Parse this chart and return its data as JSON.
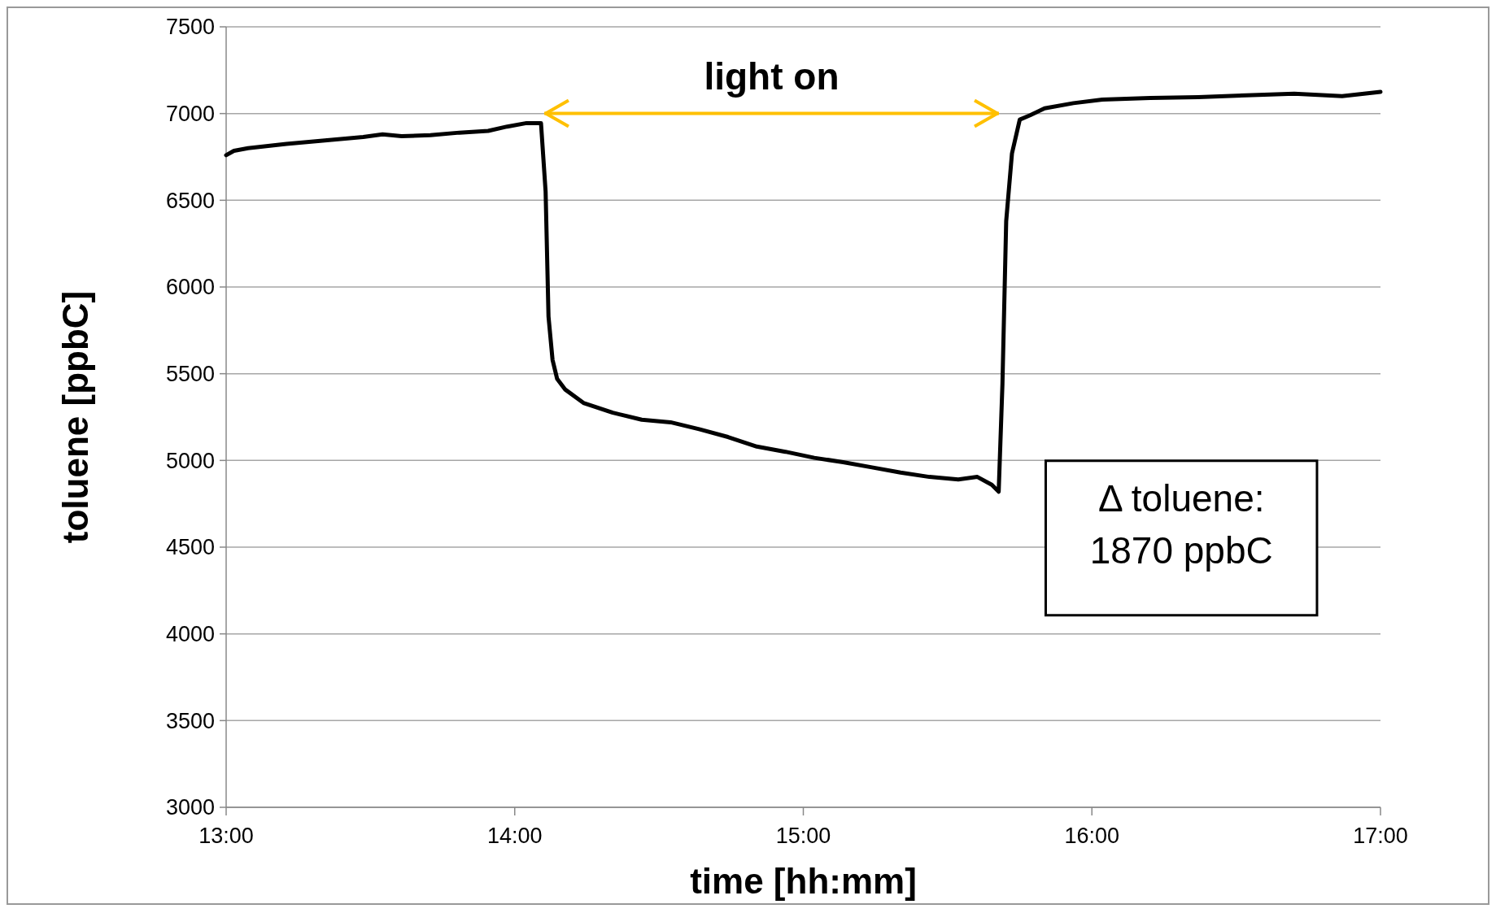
{
  "chart_data": {
    "type": "line",
    "xlabel": "time [hh:mm]",
    "ylabel": "toluene [ppbC]",
    "xlim": [
      13,
      17
    ],
    "xticks": [
      {
        "value": 13,
        "label": "13:00"
      },
      {
        "value": 14,
        "label": "14:00"
      },
      {
        "value": 15,
        "label": "15:00"
      },
      {
        "value": 16,
        "label": "16:00"
      },
      {
        "value": 17,
        "label": "17:00"
      }
    ],
    "ylim": [
      3000,
      7500
    ],
    "yticks": [
      3000,
      3500,
      4000,
      4500,
      5000,
      5500,
      6000,
      6500,
      7000,
      7500
    ],
    "grid": "y",
    "marker": "none",
    "line_style": "solid",
    "series": [
      {
        "color": "#000000",
        "x": [
          13,
          13.027,
          13.076,
          13.209,
          13.342,
          13.475,
          13.542,
          13.608,
          13.708,
          13.808,
          13.908,
          13.974,
          14.041,
          14.091,
          14.107,
          14.117,
          14.131,
          14.147,
          14.174,
          14.24,
          14.34,
          14.44,
          14.54,
          14.639,
          14.739,
          14.839,
          14.938,
          15.038,
          15.138,
          15.238,
          15.337,
          15.437,
          15.537,
          15.603,
          15.653,
          15.677,
          15.69,
          15.703,
          15.723,
          15.75,
          15.786,
          15.836,
          15.936,
          16.036,
          16.202,
          16.368,
          16.535,
          16.701,
          16.867,
          17
        ],
        "values": [
          6760,
          6785,
          6800,
          6825,
          6845,
          6865,
          6880,
          6870,
          6875,
          6890,
          6900,
          6925,
          6945,
          6945,
          6550,
          5830,
          5580,
          5470,
          5410,
          5330,
          5275,
          5235,
          5220,
          5180,
          5135,
          5080,
          5050,
          5015,
          4990,
          4960,
          4930,
          4905,
          4890,
          4905,
          4860,
          4820,
          5440,
          6380,
          6770,
          6965,
          6990,
          7030,
          7060,
          7080,
          7090,
          7095,
          7105,
          7115,
          7100,
          7125
        ]
      }
    ],
    "annotations": [
      "light on",
      "Δ toluene:\n1870 ppbC"
    ]
  }
}
